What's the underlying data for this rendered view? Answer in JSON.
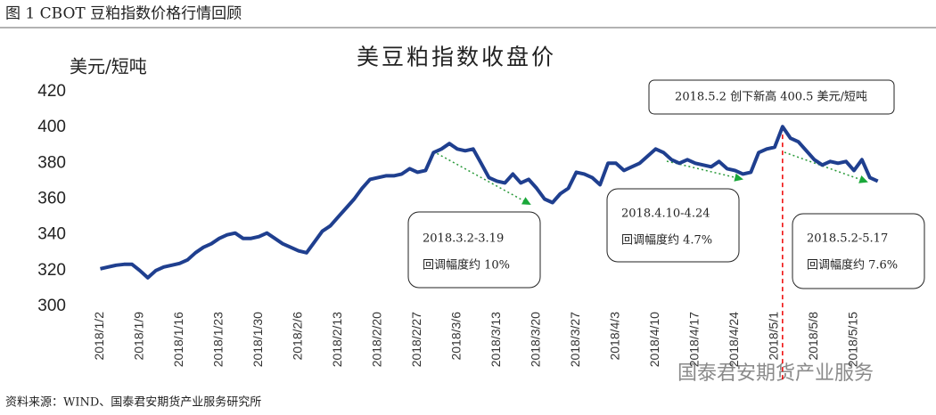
{
  "figure_title": "图 1 CBOT 豆粕指数价格行情回顾",
  "source": "资料来源：WIND、国泰君安期货产业服务研究所",
  "watermark": "国泰君安期货产业服务",
  "chart_data": {
    "type": "line",
    "title": "美豆粕指数收盘价",
    "y_label": "美元/短吨",
    "color": "#1f3f8f",
    "categories": [
      "2018/1/2",
      null,
      null,
      null,
      null,
      "2018/1/9",
      null,
      null,
      null,
      null,
      "2018/1/16",
      null,
      null,
      null,
      null,
      "2018/1/23",
      null,
      null,
      null,
      null,
      "2018/1/30",
      null,
      null,
      null,
      null,
      "2018/2/6",
      null,
      null,
      null,
      null,
      "2018/2/13",
      null,
      null,
      null,
      null,
      "2018/2/20",
      null,
      null,
      null,
      null,
      "2018/2/27",
      null,
      null,
      null,
      null,
      "2018/3/6",
      null,
      null,
      null,
      null,
      "2018/3/13",
      null,
      null,
      null,
      null,
      "2018/3/20",
      null,
      null,
      null,
      null,
      "2018/3/27",
      null,
      null,
      null,
      null,
      "2018/4/3",
      null,
      null,
      null,
      null,
      "2018/4/10",
      null,
      null,
      null,
      null,
      "2018/4/17",
      null,
      null,
      null,
      null,
      "2018/4/24",
      null,
      null,
      null,
      null,
      "2018/5/1",
      null,
      null,
      null,
      null,
      "2018/5/8",
      null,
      null,
      null,
      null,
      "2018/5/15",
      null,
      null,
      null
    ],
    "values": [
      321,
      322,
      323,
      323.5,
      323.5,
      320,
      316,
      320,
      322,
      323,
      324,
      326,
      330,
      333,
      335,
      338,
      340,
      341,
      338,
      338,
      339,
      341,
      338,
      335,
      333,
      331,
      330,
      336,
      342,
      345,
      350,
      355,
      360,
      366,
      371,
      372,
      373,
      373,
      374,
      377,
      375,
      376,
      386,
      388,
      391,
      388,
      387,
      388,
      380,
      372,
      370,
      369,
      374,
      369,
      371,
      366,
      360,
      358,
      363,
      366,
      375,
      374,
      372,
      368,
      380,
      380,
      376,
      378,
      380,
      384,
      388,
      386,
      382,
      380,
      382,
      380,
      379,
      378,
      381,
      377,
      376,
      374,
      375,
      386,
      388,
      389,
      400.5,
      394,
      392,
      387,
      382,
      379,
      381,
      380,
      381,
      376,
      382,
      372,
      370
    ],
    "ylim": [
      300,
      420
    ],
    "yticks": [
      300,
      320,
      340,
      360,
      380,
      400,
      420
    ],
    "annotations": [
      {
        "text": "2018.5.2 创下新高 400.5 美元/短吨"
      },
      {
        "text": "2018.3.2-3.19",
        "note": "回调幅度约 10%"
      },
      {
        "text": "2018.4.10-4.24",
        "note": "回调幅度约 4.7%"
      },
      {
        "text": "2018.5.2-5.17",
        "note": "回调幅度约 7.6%"
      }
    ]
  }
}
